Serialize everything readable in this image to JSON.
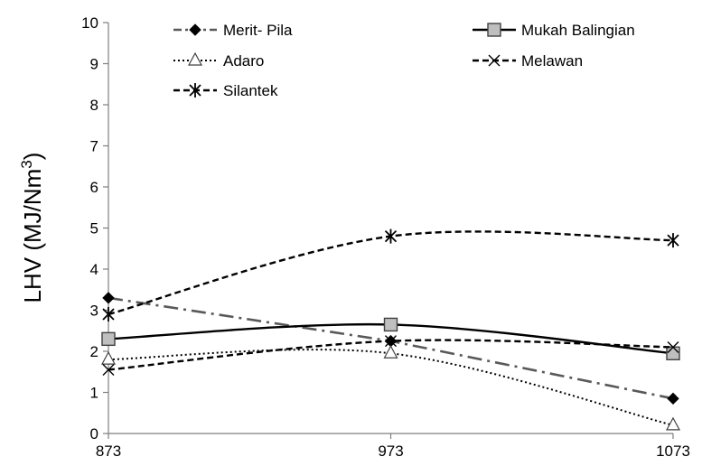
{
  "chart_data": {
    "type": "line",
    "title": "",
    "xlabel": "",
    "ylabel": "LHV (MJ/Nm",
    "ylabel_superscript": "3",
    "ylabel_close": ")",
    "x": [
      873,
      973,
      1073
    ],
    "x_tick_labels": [
      "873",
      "973",
      "1073"
    ],
    "xlim": [
      873,
      1073
    ],
    "ylim": [
      0,
      10
    ],
    "y_ticks": [
      0,
      1,
      2,
      3,
      4,
      5,
      6,
      7,
      8,
      9,
      10
    ],
    "y_tick_labels": [
      "0",
      "1",
      "2",
      "3",
      "4",
      "5",
      "6",
      "7",
      "8",
      "9",
      "10"
    ],
    "grid": false,
    "legend_position": "top",
    "series": [
      {
        "name": "Merit- Pila",
        "values": [
          3.3,
          2.25,
          0.85
        ],
        "color": "#595959",
        "line_style": "dash-dot",
        "marker": "diamond",
        "smooth": false
      },
      {
        "name": "Mukah Balingian",
        "values": [
          2.3,
          2.65,
          1.95
        ],
        "color": "#000000",
        "line_style": "solid",
        "marker": "square",
        "smooth": true
      },
      {
        "name": "Adaro",
        "values": [
          1.8,
          1.95,
          0.2
        ],
        "color": "#000000",
        "line_style": "dotted",
        "marker": "triangle",
        "smooth": true
      },
      {
        "name": "Melawan",
        "values": [
          1.55,
          2.25,
          2.1
        ],
        "color": "#000000",
        "line_style": "dashed",
        "marker": "cross",
        "smooth": true
      },
      {
        "name": "Silantek",
        "values": [
          2.9,
          4.8,
          4.7
        ],
        "color": "#000000",
        "line_style": "dashed",
        "marker": "asterisk",
        "smooth": true
      }
    ]
  }
}
